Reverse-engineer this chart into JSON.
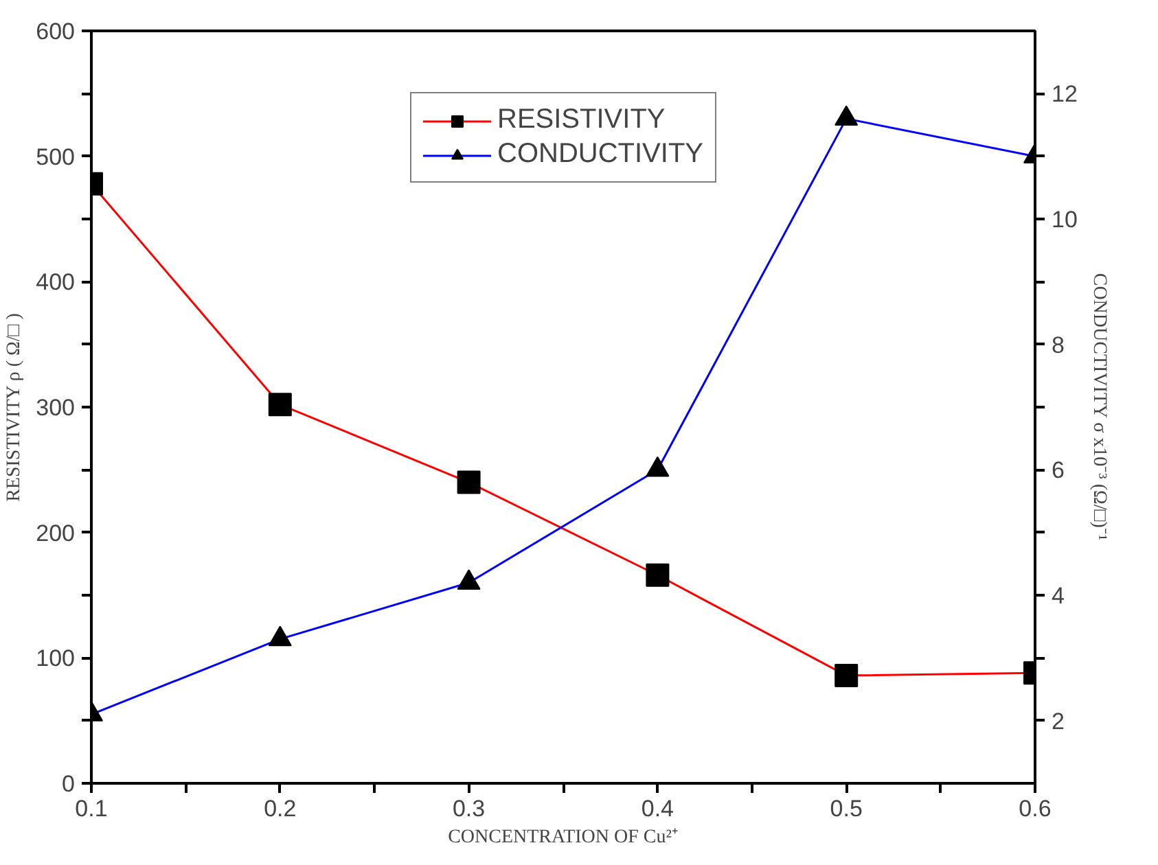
{
  "chart_data": {
    "type": "line",
    "xlabel": "CONCENTRATION OF Cu²⁺",
    "ylabel": "RESISTIVITY ρ ( Ω/□ )",
    "y2label": "CONDUCTIVITY σ x10⁻³ (Ω/□)⁻¹",
    "x": [
      0.1,
      0.2,
      0.3,
      0.4,
      0.5,
      0.6
    ],
    "series": [
      {
        "name": "RESISTIVITY",
        "color": "#ff0000",
        "marker": "square",
        "values": [
          478,
          302,
          240,
          166,
          86,
          88
        ]
      },
      {
        "name": "CONDUCTIVITY",
        "color": "#0000ff",
        "marker": "triangle",
        "axis": "y2",
        "values": [
          2.1,
          3.3,
          4.2,
          6.0,
          11.6,
          11.0
        ]
      }
    ],
    "xlim": [
      0.1,
      0.6
    ],
    "xticks": [
      0.1,
      {
        "value": 0.15,
        "label": null
      },
      0.2,
      {
        "value": 0.25,
        "label": null
      },
      0.3,
      {
        "value": 0.35,
        "label": null
      },
      0.4,
      {
        "value": 0.45,
        "label": null
      },
      0.5,
      {
        "value": 0.55,
        "label": null
      },
      0.6
    ],
    "ylim": [
      0,
      600
    ],
    "yticks": [
      0,
      {
        "value": 50,
        "label": null
      },
      100,
      {
        "value": 150,
        "label": null
      },
      200,
      {
        "value": 250,
        "label": null
      },
      300,
      {
        "value": 350,
        "label": null
      },
      400,
      {
        "value": 450,
        "label": null
      },
      500,
      {
        "value": 550,
        "label": null
      },
      600
    ],
    "y2lim": [
      1,
      13
    ],
    "y2ticks": [
      2,
      {
        "value": 3,
        "label": null
      },
      4,
      {
        "value": 5,
        "label": null
      },
      6,
      {
        "value": 7,
        "label": null
      },
      8,
      {
        "value": 9,
        "label": null
      },
      10,
      {
        "value": 11,
        "label": null
      },
      12
    ],
    "grid": false,
    "legend": "top",
    "line_style": "solid"
  }
}
